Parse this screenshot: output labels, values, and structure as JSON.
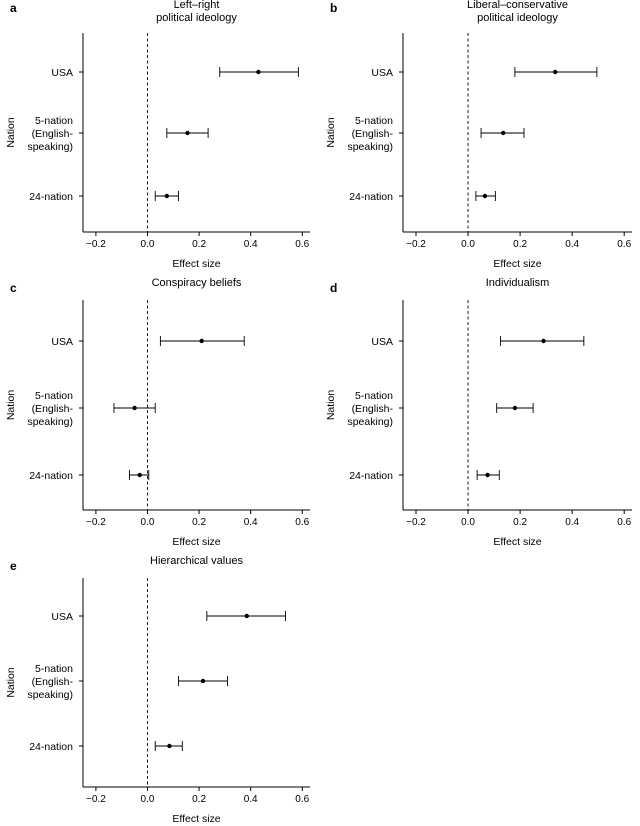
{
  "chart_data": [
    {
      "type": "scatter",
      "panel_label": "a",
      "title_lines": [
        "Left–right",
        "political ideology"
      ],
      "xlabel": "Effect size",
      "ylabel": "Nation",
      "xlim": [
        -0.25,
        0.63
      ],
      "xticks": [
        -0.2,
        0.0,
        0.2,
        0.4,
        0.6
      ],
      "xtick_labels": [
        "−0.2",
        "0.0",
        "0.2",
        "0.4",
        "0.6"
      ],
      "reference_line": 0,
      "categories": [
        {
          "lines": [
            "USA"
          ],
          "estimate": 0.43,
          "ci": [
            0.28,
            0.585
          ]
        },
        {
          "lines": [
            "5-nation",
            "(English-",
            "speaking)"
          ],
          "estimate": 0.155,
          "ci": [
            0.075,
            0.235
          ]
        },
        {
          "lines": [
            "24-nation"
          ],
          "estimate": 0.075,
          "ci": [
            0.03,
            0.12
          ]
        }
      ]
    },
    {
      "type": "scatter",
      "panel_label": "b",
      "title_lines": [
        "Liberal–conservative",
        "political ideology"
      ],
      "xlabel": "Effect size",
      "ylabel": "Nation",
      "xlim": [
        -0.25,
        0.63
      ],
      "xticks": [
        -0.2,
        0.0,
        0.2,
        0.4,
        0.6
      ],
      "xtick_labels": [
        "−0.2",
        "0.0",
        "0.2",
        "0.4",
        "0.6"
      ],
      "reference_line": 0,
      "categories": [
        {
          "lines": [
            "USA"
          ],
          "estimate": 0.335,
          "ci": [
            0.18,
            0.495
          ]
        },
        {
          "lines": [
            "5-nation",
            "(English-",
            "speaking)"
          ],
          "estimate": 0.135,
          "ci": [
            0.05,
            0.215
          ]
        },
        {
          "lines": [
            "24-nation"
          ],
          "estimate": 0.065,
          "ci": [
            0.03,
            0.105
          ]
        }
      ]
    },
    {
      "type": "scatter",
      "panel_label": "c",
      "title_lines": [
        "Conspiracy beliefs"
      ],
      "xlabel": "Effect size",
      "ylabel": "Nation",
      "xlim": [
        -0.25,
        0.63
      ],
      "xticks": [
        -0.2,
        0.0,
        0.2,
        0.4,
        0.6
      ],
      "xtick_labels": [
        "−0.2",
        "0.0",
        "0.2",
        "0.4",
        "0.6"
      ],
      "reference_line": 0,
      "categories": [
        {
          "lines": [
            "USA"
          ],
          "estimate": 0.21,
          "ci": [
            0.05,
            0.375
          ]
        },
        {
          "lines": [
            "5-nation",
            "(English-",
            "speaking)"
          ],
          "estimate": -0.05,
          "ci": [
            -0.13,
            0.03
          ]
        },
        {
          "lines": [
            "24-nation"
          ],
          "estimate": -0.03,
          "ci": [
            -0.07,
            0.005
          ]
        }
      ]
    },
    {
      "type": "scatter",
      "panel_label": "d",
      "title_lines": [
        "Individualism"
      ],
      "xlabel": "Effect size",
      "ylabel": "Nation",
      "xlim": [
        -0.25,
        0.63
      ],
      "xticks": [
        -0.2,
        0.0,
        0.2,
        0.4,
        0.6
      ],
      "xtick_labels": [
        "−0.2",
        "0.0",
        "0.2",
        "0.4",
        "0.6"
      ],
      "reference_line": 0,
      "categories": [
        {
          "lines": [
            "USA"
          ],
          "estimate": 0.29,
          "ci": [
            0.125,
            0.445
          ]
        },
        {
          "lines": [
            "5-nation",
            "(English-",
            "speaking)"
          ],
          "estimate": 0.18,
          "ci": [
            0.11,
            0.25
          ]
        },
        {
          "lines": [
            "24-nation"
          ],
          "estimate": 0.075,
          "ci": [
            0.035,
            0.12
          ]
        }
      ]
    },
    {
      "type": "scatter",
      "panel_label": "e",
      "title_lines": [
        "Hierarchical values"
      ],
      "xlabel": "Effect size",
      "ylabel": "Nation",
      "xlim": [
        -0.25,
        0.63
      ],
      "xticks": [
        -0.2,
        0.0,
        0.2,
        0.4,
        0.6
      ],
      "xtick_labels": [
        "−0.2",
        "0.0",
        "0.2",
        "0.4",
        "0.6"
      ],
      "reference_line": 0,
      "categories": [
        {
          "lines": [
            "USA"
          ],
          "estimate": 0.385,
          "ci": [
            0.23,
            0.535
          ]
        },
        {
          "lines": [
            "5-nation",
            "(English-",
            "speaking)"
          ],
          "estimate": 0.215,
          "ci": [
            0.12,
            0.31
          ]
        },
        {
          "lines": [
            "24-nation"
          ],
          "estimate": 0.085,
          "ci": [
            0.03,
            0.135
          ]
        }
      ]
    }
  ]
}
